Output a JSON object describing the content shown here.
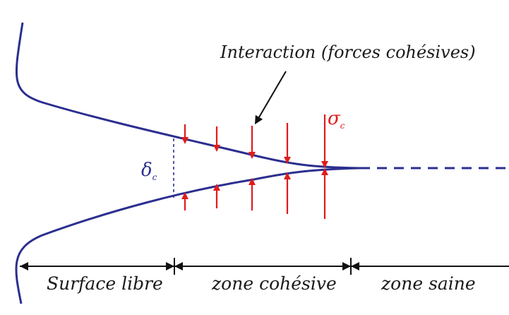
{
  "diagram": {
    "title": "Interaction (forces cohésives)",
    "delta_symbol": "δ",
    "delta_subscript": "c",
    "sigma_symbol": "σ",
    "sigma_subscript": "c",
    "regions": [
      {
        "label": "Surface libre"
      },
      {
        "label": "zone cohésive"
      },
      {
        "label": "zone saine"
      }
    ],
    "colors": {
      "crack": "#2b2f8f",
      "force": "#e11b1b",
      "text": "#1a1a1a",
      "dimension": "#111111"
    },
    "force_arrow_count": 5
  }
}
